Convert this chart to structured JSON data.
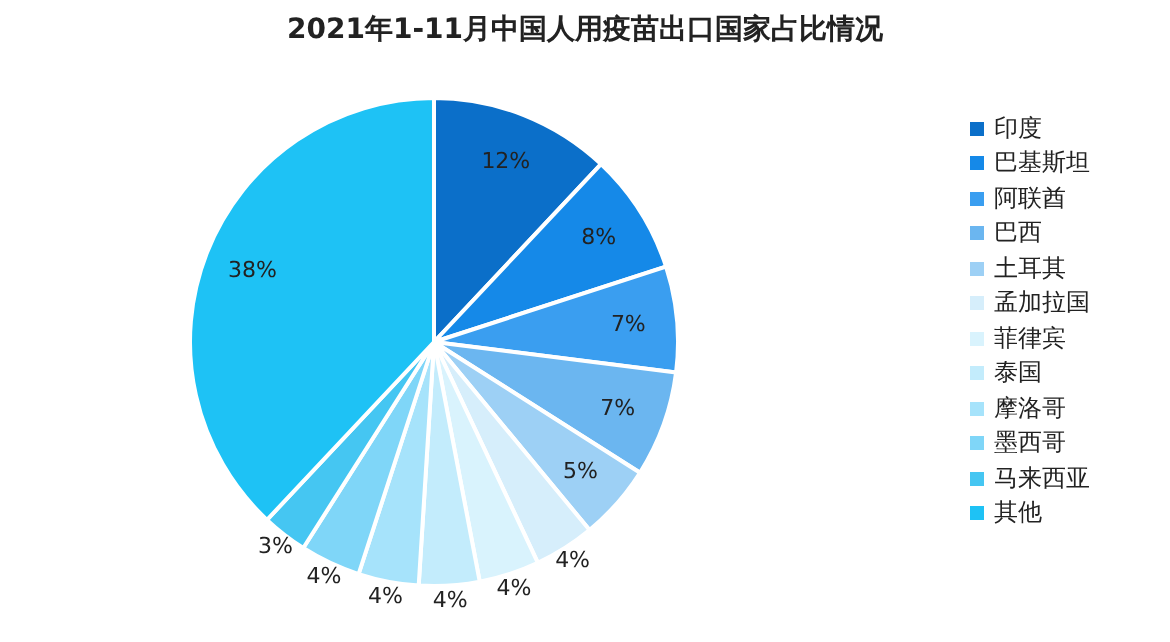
{
  "chart_data": {
    "type": "pie",
    "title": "2021年1-11月中国人用疫苗出口国家占比情况",
    "categories": [
      "印度",
      "巴基斯坦",
      "阿联酋",
      "巴西",
      "土耳其",
      "孟加拉国",
      "菲律宾",
      "泰国",
      "摩洛哥",
      "墨西哥",
      "马来西亚",
      "其他"
    ],
    "values": [
      12,
      8,
      7,
      7,
      5,
      4,
      4,
      4,
      4,
      4,
      3,
      38
    ],
    "colors": [
      "#0b6fc9",
      "#1589e8",
      "#3a9ef0",
      "#6bb6f0",
      "#9dd0f5",
      "#d6eefb",
      "#d9f3fd",
      "#c3ecfc",
      "#a6e3fb",
      "#7fd6f8",
      "#45c6f2",
      "#1ec2f5"
    ],
    "value_labels": [
      "12%",
      "8%",
      "7%",
      "7%",
      "5%",
      "4%",
      "4%",
      "4%",
      "4%",
      "4%",
      "3%",
      "38%"
    ],
    "legend": "right"
  }
}
